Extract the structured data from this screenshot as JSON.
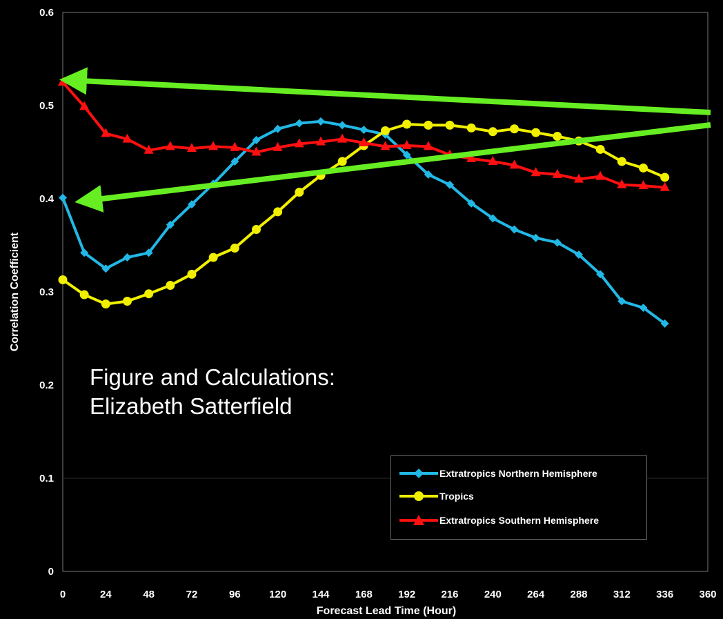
{
  "chart_data": {
    "type": "line",
    "xlabel": "Forecast Lead Time (Hour)",
    "ylabel": "Correlation Coefficient",
    "xlim": [
      0,
      360
    ],
    "ylim": [
      0,
      0.6
    ],
    "x_ticks": [
      "0",
      "24",
      "48",
      "72",
      "96",
      "120",
      "144",
      "168",
      "192",
      "216",
      "240",
      "264",
      "288",
      "312",
      "336",
      "360"
    ],
    "y_ticks": [
      "0",
      "0.1",
      "0.2",
      "0.3",
      "0.4",
      "0.5",
      "0.6"
    ],
    "x": [
      0,
      12,
      24,
      36,
      48,
      60,
      72,
      84,
      96,
      108,
      120,
      132,
      144,
      156,
      168,
      180,
      192,
      204,
      216,
      228,
      240,
      252,
      264,
      276,
      288,
      300,
      312,
      324,
      336
    ],
    "series": [
      {
        "name": "Extratropics Northern Hemisphere",
        "color": "#22b8e6",
        "marker": "diamond",
        "values": [
          0.401,
          0.342,
          0.325,
          0.337,
          0.342,
          0.372,
          0.394,
          0.416,
          0.44,
          0.463,
          0.475,
          0.481,
          0.483,
          0.479,
          0.474,
          0.469,
          0.447,
          0.426,
          0.415,
          0.395,
          0.379,
          0.367,
          0.358,
          0.353,
          0.34,
          0.319,
          0.29,
          0.283,
          0.266
        ]
      },
      {
        "name": "Tropics",
        "color": "#f0f000",
        "marker": "circle",
        "values": [
          0.313,
          0.297,
          0.287,
          0.29,
          0.298,
          0.307,
          0.319,
          0.337,
          0.347,
          0.367,
          0.386,
          0.407,
          0.425,
          0.44,
          0.457,
          0.473,
          0.48,
          0.479,
          0.479,
          0.476,
          0.472,
          0.475,
          0.471,
          0.467,
          0.462,
          0.453,
          0.44,
          0.433,
          0.423
        ]
      },
      {
        "name": "Extratropics Southern Hemisphere",
        "color": "#ff1010",
        "marker": "triangle",
        "values": [
          0.525,
          0.499,
          0.47,
          0.464,
          0.452,
          0.456,
          0.454,
          0.456,
          0.455,
          0.45,
          0.455,
          0.459,
          0.461,
          0.464,
          0.46,
          0.456,
          0.457,
          0.456,
          0.447,
          0.443,
          0.44,
          0.436,
          0.428,
          0.426,
          0.421,
          0.424,
          0.415,
          0.414,
          0.412
        ]
      }
    ],
    "grid": false,
    "legend": "bottom-right",
    "annotations": [
      "Figure and Calculations:",
      "Elizabeth Satterfield"
    ],
    "arrows": [
      {
        "to_x": 0,
        "to_y": 0.525,
        "color": "#66ee22"
      },
      {
        "to_x": 0,
        "to_y": 0.401,
        "color": "#66ee22"
      }
    ]
  }
}
